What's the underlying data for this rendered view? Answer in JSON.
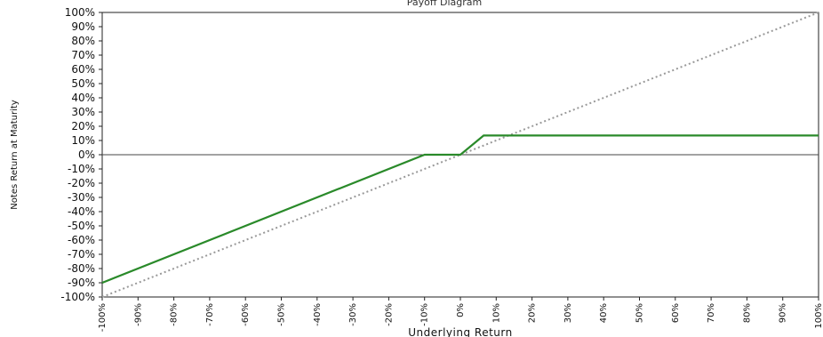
{
  "chart_data": {
    "type": "line",
    "top_text": "Payoff Diagram",
    "xlabel": "Underlying Return",
    "ylabel": "Notes Return at Maturity",
    "xlim": [
      -100,
      100
    ],
    "ylim": [
      -100,
      100
    ],
    "x_ticks": [
      "-100%",
      "-90%",
      "-80%",
      "-70%",
      "-60%",
      "-50%",
      "-40%",
      "-30%",
      "-20%",
      "-10%",
      "0%",
      "10%",
      "20%",
      "30%",
      "40%",
      "50%",
      "60%",
      "70%",
      "80%",
      "90%",
      "100%"
    ],
    "y_ticks": [
      "100%",
      "90%",
      "80%",
      "70%",
      "60%",
      "50%",
      "40%",
      "30%",
      "20%",
      "10%",
      "0%",
      "-10%",
      "-20%",
      "-30%",
      "-40%",
      "-50%",
      "-60%",
      "-70%",
      "-80%",
      "-90%",
      "-100%"
    ],
    "grid": false,
    "series": [
      {
        "style": "solid",
        "color": "#2a8a2a",
        "x": [
          -100,
          -10,
          0,
          6.5,
          100
        ],
        "y": [
          -90,
          0,
          0,
          13.5,
          13.5
        ]
      },
      {
        "style": "dotted",
        "color": "#999999",
        "x": [
          -100,
          100
        ],
        "y": [
          -100,
          100
        ]
      }
    ]
  }
}
